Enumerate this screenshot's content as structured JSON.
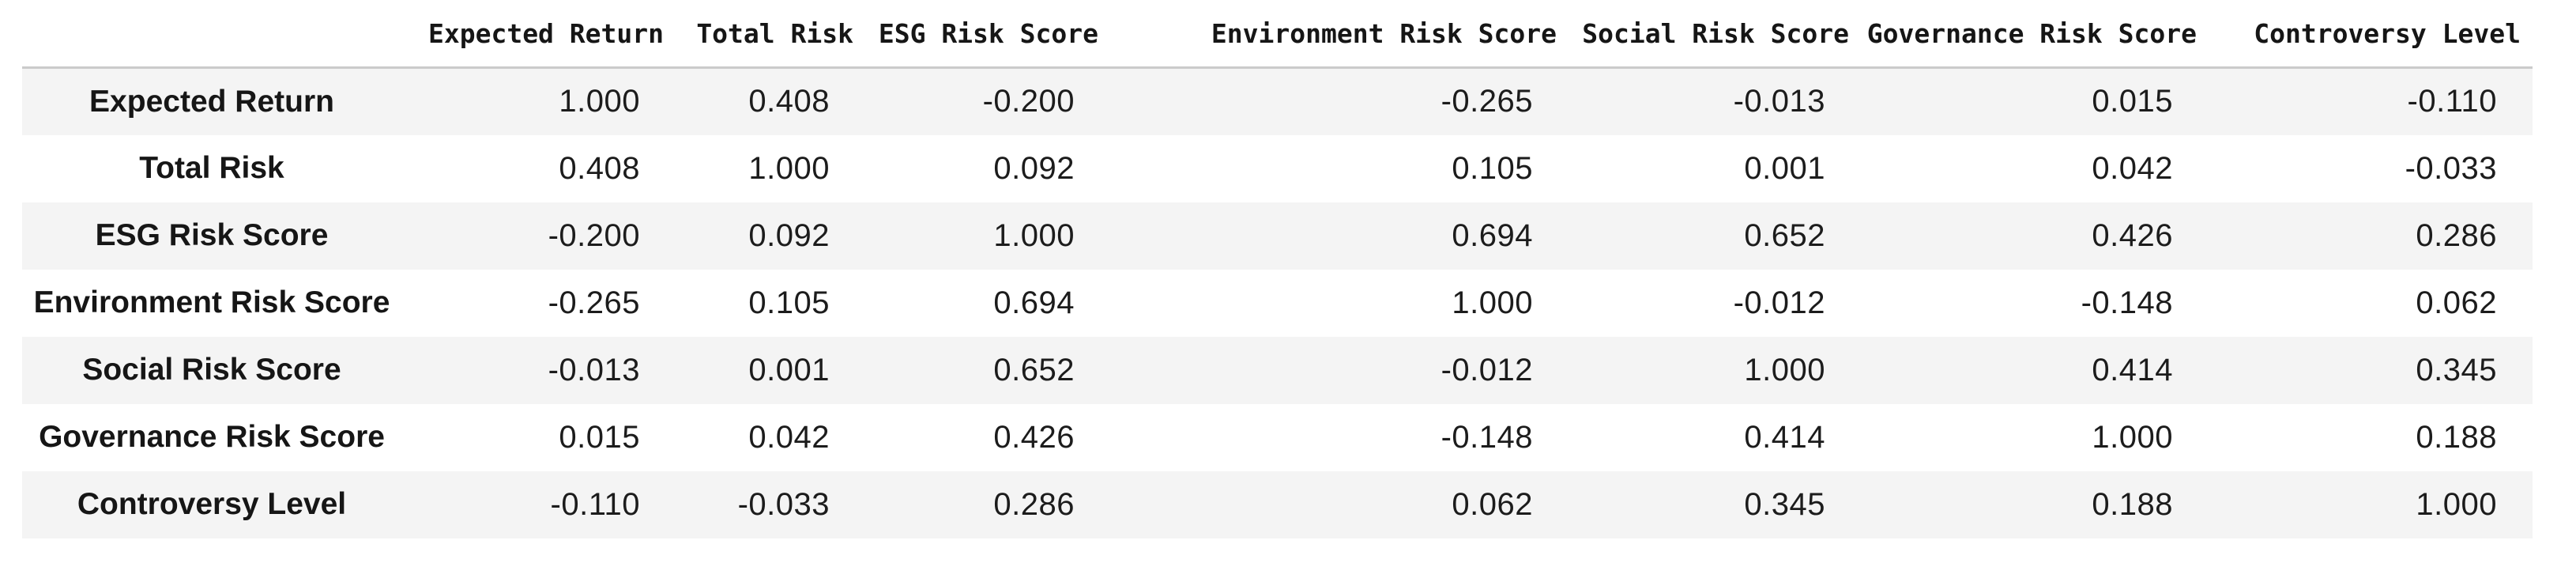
{
  "table": {
    "corner_label": "",
    "columns": [
      "Expected Return",
      "Total Risk",
      "ESG Risk Score",
      "Environment Risk Score",
      "Social Risk Score",
      "Governance Risk Score",
      "Controversy Level"
    ],
    "rows": [
      {
        "label": "Expected Return",
        "values": [
          "1.000",
          "0.408",
          "-0.200",
          "-0.265",
          "-0.013",
          "0.015",
          "-0.110"
        ]
      },
      {
        "label": "Total Risk",
        "values": [
          "0.408",
          "1.000",
          "0.092",
          "0.105",
          "0.001",
          "0.042",
          "-0.033"
        ]
      },
      {
        "label": "ESG Risk Score",
        "values": [
          "-0.200",
          "0.092",
          "1.000",
          "0.694",
          "0.652",
          "0.426",
          "0.286"
        ]
      },
      {
        "label": "Environment Risk Score",
        "values": [
          "-0.265",
          "0.105",
          "0.694",
          "1.000",
          "-0.012",
          "-0.148",
          "0.062"
        ]
      },
      {
        "label": "Social Risk Score",
        "values": [
          "-0.013",
          "0.001",
          "0.652",
          "-0.012",
          "1.000",
          "0.414",
          "0.345"
        ]
      },
      {
        "label": "Governance Risk Score",
        "values": [
          "0.015",
          "0.042",
          "0.426",
          "-0.148",
          "0.414",
          "1.000",
          "0.188"
        ]
      },
      {
        "label": "Controversy Level",
        "values": [
          "-0.110",
          "-0.033",
          "0.286",
          "0.062",
          "0.345",
          "0.188",
          "1.000"
        ]
      }
    ]
  },
  "chart_data": {
    "type": "table",
    "title": "",
    "row_labels": [
      "Expected Return",
      "Total Risk",
      "ESG Risk Score",
      "Environment Risk Score",
      "Social Risk Score",
      "Governance Risk Score",
      "Controversy Level"
    ],
    "col_labels": [
      "Expected Return",
      "Total Risk",
      "ESG Risk Score",
      "Environment Risk Score",
      "Social Risk Score",
      "Governance Risk Score",
      "Controversy Level"
    ],
    "matrix": [
      [
        1.0,
        0.408,
        -0.2,
        -0.265,
        -0.013,
        0.015,
        -0.11
      ],
      [
        0.408,
        1.0,
        0.092,
        0.105,
        0.001,
        0.042,
        -0.033
      ],
      [
        -0.2,
        0.092,
        1.0,
        0.694,
        0.652,
        0.426,
        0.286
      ],
      [
        -0.265,
        0.105,
        0.694,
        1.0,
        -0.012,
        -0.148,
        0.062
      ],
      [
        -0.013,
        0.001,
        0.652,
        -0.012,
        1.0,
        0.414,
        0.345
      ],
      [
        0.015,
        0.042,
        0.426,
        -0.148,
        0.414,
        1.0,
        0.188
      ],
      [
        -0.11,
        -0.033,
        0.286,
        0.062,
        0.345,
        0.188,
        1.0
      ]
    ],
    "layout": {
      "zebra_striping": true,
      "first_body_row_shaded": true,
      "value_alignment": "right",
      "row_label_alignment": "center"
    }
  },
  "colors": {
    "row_alt_bg": "#f4f4f4",
    "row_bg": "#ffffff",
    "header_border": "#cbcbcb",
    "text": "#1c1c1c"
  }
}
